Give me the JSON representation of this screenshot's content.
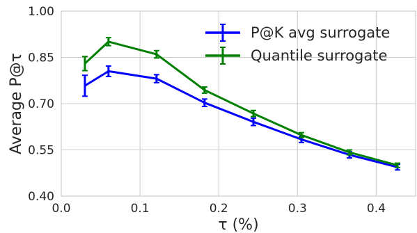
{
  "chart_data": {
    "type": "line",
    "x": [
      0.03,
      0.06,
      0.121,
      0.182,
      0.244,
      0.305,
      0.366,
      0.427
    ],
    "series": [
      {
        "name": "P@K avg surrogate",
        "color": "#0000ff",
        "values": [
          0.758,
          0.805,
          0.781,
          0.703,
          0.641,
          0.584,
          0.534,
          0.494
        ],
        "errors": [
          0.034,
          0.017,
          0.013,
          0.012,
          0.012,
          0.01,
          0.01,
          0.009
        ]
      },
      {
        "name": "Quantile surrogate",
        "color": "#008000",
        "values": [
          0.83,
          0.901,
          0.86,
          0.744,
          0.668,
          0.598,
          0.542,
          0.5
        ],
        "errors": [
          0.023,
          0.013,
          0.012,
          0.01,
          0.01,
          0.008,
          0.008,
          0.007
        ]
      }
    ],
    "xlabel": "τ (%)",
    "ylabel": "Average P@τ",
    "xlim": [
      0.0,
      0.45
    ],
    "ylim": [
      0.4,
      1.0
    ],
    "xticks": [
      "0.0",
      "0.1",
      "0.2",
      "0.3",
      "0.4"
    ],
    "yticks": [
      "0.40",
      "0.55",
      "0.70",
      "0.85",
      "1.00"
    ],
    "grid": true,
    "legend_position": "top-right"
  }
}
